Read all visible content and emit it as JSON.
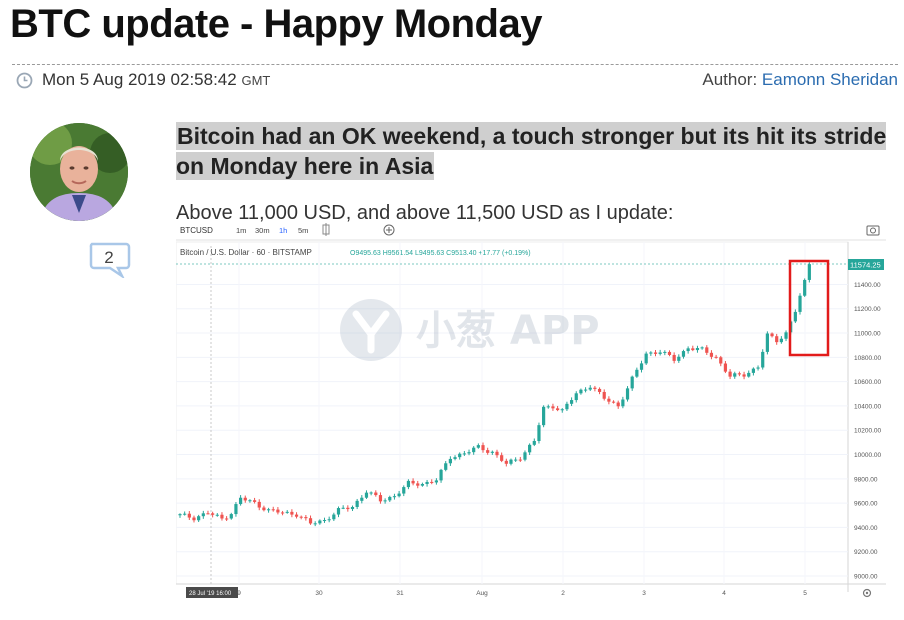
{
  "article": {
    "title": "BTC update - Happy Monday",
    "date": "Mon 5 Aug 2019 02:58:42",
    "tz": "GMT",
    "author_label": "Author:",
    "author_name": "Eamonn Sheridan",
    "comment_count": "2",
    "lead": "Bitcoin had an OK weekend,  a touch stronger but its hit its stride on Monday here in Asia",
    "body": "Above 11,000 USD, and above 11,500 USD as I update:"
  },
  "icons": {
    "clock": "clock-icon",
    "comment": "comment-bubble-icon",
    "camera": "camera-icon",
    "settings": "gear-icon",
    "add": "plus-circle-icon",
    "indicator": "indicator-icon"
  },
  "colors": {
    "up": "#26a69a",
    "down": "#ef5350",
    "highlight_box": "#e21b1b",
    "link": "#2b6cb0"
  },
  "chart_toolbar": {
    "symbol": "BTCUSD",
    "intervals": [
      "1m",
      "30m",
      "1h",
      "5m"
    ]
  },
  "chart_legend": {
    "name": "Bitcoin / U.S. Dollar · 60 · BITSTAMP",
    "ohlc": "O9495.63  H9561.54  L9495.63  C9513.40  +17.77 (+0.19%)"
  },
  "chart_watermark": "小葱 APP",
  "chart_data": {
    "type": "candlestick",
    "title": "",
    "xlabel": "",
    "ylabel": "",
    "ylim": [
      9000,
      11700
    ],
    "yticks": [
      "11400.00",
      "11200.00",
      "11000.00",
      "10800.00",
      "10600.00",
      "10400.00",
      "10200.00",
      "10000.00",
      "9800.00",
      "9600.00",
      "9400.00",
      "9200.00",
      "9000.00"
    ],
    "ytick_values": [
      11400,
      11200,
      11000,
      10800,
      10600,
      10400,
      10200,
      10000,
      9800,
      9600,
      9400,
      9200,
      9000
    ],
    "xticks": [
      "28 Jul '19  16:00",
      "9",
      "30",
      "31",
      "Aug",
      "2",
      "3",
      "4",
      "5"
    ],
    "last_price_label": "11574.25",
    "close_path": [
      [
        0,
        9500
      ],
      [
        3,
        9480
      ],
      [
        6,
        9520
      ],
      [
        9,
        9470
      ],
      [
        11,
        9520
      ],
      [
        13,
        9640
      ],
      [
        16,
        9600
      ],
      [
        19,
        9540
      ],
      [
        22,
        9520
      ],
      [
        25,
        9510
      ],
      [
        28,
        9430
      ],
      [
        31,
        9460
      ],
      [
        34,
        9540
      ],
      [
        37,
        9570
      ],
      [
        40,
        9700
      ],
      [
        43,
        9620
      ],
      [
        46,
        9660
      ],
      [
        49,
        9760
      ],
      [
        52,
        9760
      ],
      [
        55,
        9790
      ],
      [
        58,
        9980
      ],
      [
        61,
        10010
      ],
      [
        64,
        10060
      ],
      [
        67,
        10020
      ],
      [
        70,
        9920
      ],
      [
        73,
        9980
      ],
      [
        76,
        10110
      ],
      [
        78,
        10380
      ],
      [
        80,
        10400
      ],
      [
        82,
        10360
      ],
      [
        85,
        10500
      ],
      [
        88,
        10570
      ],
      [
        91,
        10460
      ],
      [
        94,
        10400
      ],
      [
        97,
        10620
      ],
      [
        100,
        10830
      ],
      [
        103,
        10850
      ],
      [
        106,
        10780
      ],
      [
        109,
        10880
      ],
      [
        112,
        10860
      ],
      [
        115,
        10800
      ],
      [
        118,
        10640
      ],
      [
        121,
        10660
      ],
      [
        124,
        10720
      ],
      [
        126,
        10980
      ],
      [
        128,
        10940
      ],
      [
        130,
        11000
      ],
      [
        132,
        11180
      ],
      [
        134,
        11420
      ],
      [
        135,
        11574.25
      ]
    ]
  }
}
